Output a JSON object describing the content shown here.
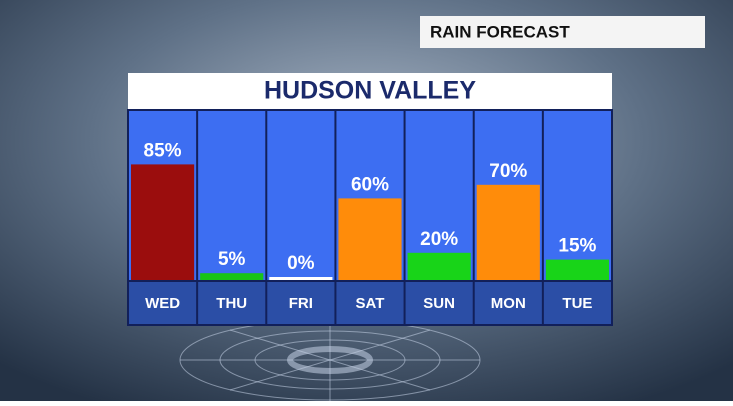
{
  "header": "RAIN FORECAST",
  "chart_data": {
    "type": "bar",
    "title": "HUDSON VALLEY",
    "categories": [
      "WED",
      "THU",
      "FRI",
      "SAT",
      "SUN",
      "MON",
      "TUE"
    ],
    "values": [
      85,
      5,
      0,
      60,
      20,
      70,
      15
    ],
    "value_labels": [
      "85%",
      "5%",
      "0%",
      "60%",
      "20%",
      "70%",
      "15%"
    ],
    "colors": [
      "#9b0d0d",
      "#18c418",
      "#ffffff",
      "#ff8c0a",
      "#18d418",
      "#ff8c0a",
      "#18d418"
    ]
  }
}
